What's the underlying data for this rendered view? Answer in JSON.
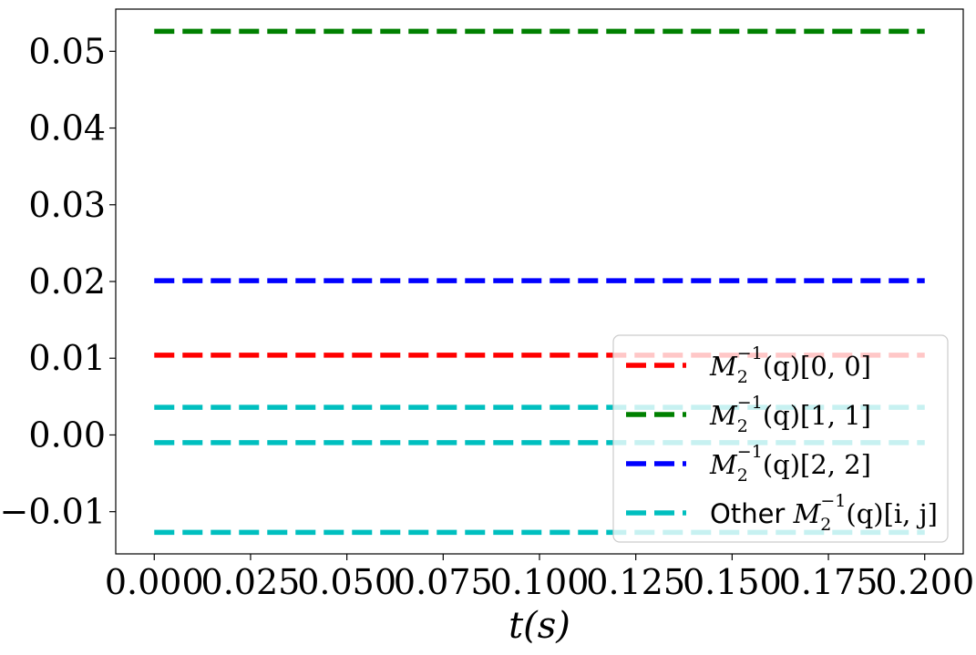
{
  "chart_data": {
    "type": "line",
    "title": "",
    "xlabel": "t(s)",
    "ylabel": "",
    "xlim": [
      -0.01,
      0.21
    ],
    "ylim": [
      -0.0155,
      0.0555
    ],
    "x": [
      0.0,
      0.2
    ],
    "xticks": [
      0.0,
      0.025,
      0.05,
      0.075,
      0.1,
      0.125,
      0.15,
      0.175,
      0.2
    ],
    "xtick_labels": [
      "0.000",
      "0.025",
      "0.050",
      "0.075",
      "0.100",
      "0.125",
      "0.150",
      "0.175",
      "0.200"
    ],
    "yticks": [
      -0.01,
      0.0,
      0.01,
      0.02,
      0.03,
      0.04,
      0.05
    ],
    "ytick_labels": [
      "−0.01",
      "0.00",
      "0.01",
      "0.02",
      "0.03",
      "0.04",
      "0.05"
    ],
    "grid": false,
    "legend_position": "lower-right",
    "series": [
      {
        "name": "M2^-1(q)[0,0]",
        "color": "#ff0000",
        "linestyle": "dashed",
        "values": [
          0.0104,
          0.0104
        ]
      },
      {
        "name": "M2^-1(q)[1,1]",
        "color": "#008000",
        "linestyle": "dashed",
        "values": [
          0.0526,
          0.0526
        ]
      },
      {
        "name": "M2^-1(q)[2,2]",
        "color": "#0000ff",
        "linestyle": "dashed",
        "values": [
          0.0201,
          0.0201
        ]
      },
      {
        "name": "Other M2^-1(q)[i,j]",
        "color": "#00bfbf",
        "linestyle": "dashed",
        "values": [
          0.0036,
          0.0036
        ]
      },
      {
        "name": "",
        "color": "#00bfbf",
        "linestyle": "dashed",
        "values": [
          -0.001,
          -0.001
        ]
      },
      {
        "name": "",
        "color": "#00bfbf",
        "linestyle": "dashed",
        "values": [
          -0.0127,
          -0.0127
        ]
      }
    ],
    "legend": [
      {
        "label_main": "M",
        "label_sub": "2",
        "label_sup": "−1",
        "label_tail": "(q)[0, 0]",
        "prefix": "",
        "color": "#ff0000"
      },
      {
        "label_main": "M",
        "label_sub": "2",
        "label_sup": "−1",
        "label_tail": "(q)[1, 1]",
        "prefix": "",
        "color": "#008000"
      },
      {
        "label_main": "M",
        "label_sub": "2",
        "label_sup": "−1",
        "label_tail": "(q)[2, 2]",
        "prefix": "",
        "color": "#0000ff"
      },
      {
        "label_main": "M",
        "label_sub": "2",
        "label_sup": "−1",
        "label_tail": "(q)[i, j]",
        "prefix": "Other ",
        "color": "#00bfbf"
      }
    ]
  }
}
